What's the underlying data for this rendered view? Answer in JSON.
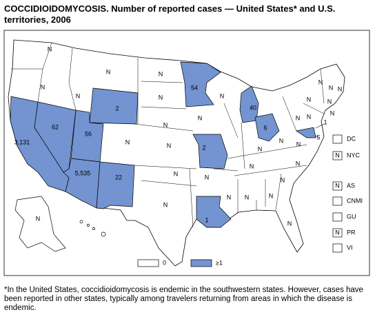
{
  "map": {
    "title": "COCCIDIOIDOMYCOSIS. Number of reported cases — United States* and U.S. territories, 2006",
    "footnote": "*In the United States, coccidioidomycosis is endemic in the southwestern states. However, cases have been reported in other states, typically among travelers returning from areas in which the disease is endemic.",
    "legend": [
      {
        "label": "0",
        "color": "#ffffff"
      },
      {
        "label": "≥1",
        "color": "#7393d1"
      }
    ],
    "states": [
      {
        "label": "N",
        "shaded": false
      },
      {
        "label": "N",
        "shaded": false
      },
      {
        "label": "N",
        "shaded": false
      },
      {
        "label": "N",
        "shaded": false
      },
      {
        "label": "2",
        "shaded": true
      },
      {
        "label": "N",
        "shaded": false
      },
      {
        "label": "N",
        "shaded": false
      },
      {
        "label": "N",
        "shaded": false
      },
      {
        "label": "54",
        "shaded": true
      },
      {
        "label": "N",
        "shaded": false
      },
      {
        "label": "40",
        "shaded": true
      },
      {
        "label": "N",
        "shaded": false
      },
      {
        "label": "6",
        "shaded": true
      },
      {
        "label": "3,131",
        "shaded": true
      },
      {
        "label": "62",
        "shaded": true
      },
      {
        "label": "56",
        "shaded": true
      },
      {
        "label": "N",
        "shaded": false
      },
      {
        "label": "N",
        "shaded": false
      },
      {
        "label": "2",
        "shaded": true
      },
      {
        "label": "5,535",
        "shaded": true
      },
      {
        "label": "22",
        "shaded": true
      },
      {
        "label": "N",
        "shaded": false
      },
      {
        "label": "N",
        "shaded": false
      },
      {
        "label": "N",
        "shaded": false
      },
      {
        "label": "1",
        "shaded": true
      },
      {
        "label": "N",
        "shaded": false
      },
      {
        "label": "N",
        "shaded": false
      },
      {
        "label": "N",
        "shaded": false
      },
      {
        "label": "N",
        "shaded": false
      },
      {
        "label": "N",
        "shaded": false
      },
      {
        "label": "N",
        "shaded": false
      },
      {
        "label": "N",
        "shaded": false
      },
      {
        "label": "N",
        "shaded": false
      },
      {
        "label": "N",
        "shaded": false
      },
      {
        "label": "N",
        "shaded": false
      },
      {
        "label": "N",
        "shaded": false
      },
      {
        "label": "N",
        "shaded": false
      },
      {
        "label": "5",
        "shaded": true
      },
      {
        "label": "1",
        "shaded": true
      },
      {
        "label": "N",
        "shaded": false
      },
      {
        "label": "N",
        "shaded": false
      },
      {
        "label": "N",
        "shaded": false
      },
      {
        "label": "N",
        "shaded": false
      },
      {
        "label": "N",
        "shaded": false
      },
      {
        "label": "N",
        "shaded": false
      },
      {
        "label": "N",
        "shaded": false
      }
    ],
    "territories": [
      {
        "label": "DC"
      },
      {
        "label": "NYC",
        "report": "N"
      },
      {
        "label": "AS",
        "report": "N"
      },
      {
        "label": "CNMI"
      },
      {
        "label": "GU"
      },
      {
        "label": "PR",
        "report": "N"
      },
      {
        "label": "VI"
      }
    ]
  }
}
